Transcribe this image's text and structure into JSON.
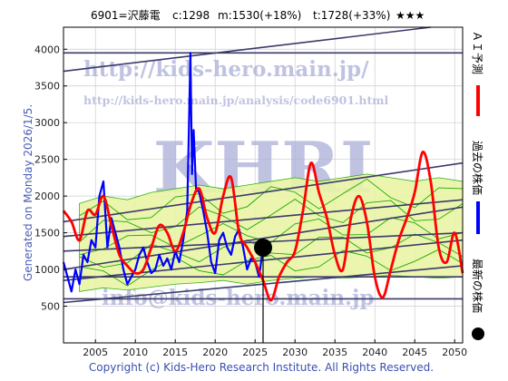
{
  "header": {
    "code_name": "6901=沢藤電",
    "current": "c:1298",
    "mid": "m:1530(+18%)",
    "target": "t:1728(+33%)",
    "stars": "★★★"
  },
  "side_text": "Generated on Monday 2026/1/5.",
  "copyright": "Copyright (c) Kids-Hero Research Institute. All Rights Reserved.",
  "watermarks": {
    "url_main": "http://kids-hero.main.jp/",
    "url_analysis": "http://kids-hero.main.jp/analysis/code6901.html",
    "logo": "KHRI",
    "email": "info@kids-hero.main.jp"
  },
  "legend": {
    "forecast": "ＡＩ予測",
    "past": "過去の株価",
    "latest": "最新の株価"
  },
  "colors": {
    "past": "#0000ff",
    "forecast": "#ff0000",
    "band_fill": "#e9f5a6",
    "band_line": "#22aa00",
    "trend": "#3a3a6a",
    "grid": "#cccccc",
    "marker": "#000000"
  },
  "chart_data": {
    "type": "line",
    "xlim": [
      2001,
      2051
    ],
    "ylim": [
      0,
      4300
    ],
    "x_ticks": [
      2005,
      2010,
      2015,
      2020,
      2025,
      2030,
      2035,
      2040,
      2045,
      2050
    ],
    "y_ticks": [
      500,
      1000,
      1500,
      2000,
      2500,
      3000,
      3500,
      4000
    ],
    "grid": true,
    "series": [
      {
        "role": "past",
        "x": [
          2001.0,
          2001.5,
          2002.0,
          2002.5,
          2003.0,
          2003.5,
          2004.0,
          2004.5,
          2005.0,
          2005.5,
          2006.0,
          2006.5,
          2007.0,
          2007.5,
          2008.0,
          2008.5,
          2009.0,
          2009.5,
          2010.0,
          2010.5,
          2011.0,
          2011.5,
          2012.0,
          2012.5,
          2013.0,
          2013.5,
          2014.0,
          2014.5,
          2015.0,
          2015.5,
          2016.0,
          2016.5,
          2016.9,
          2017.1,
          2017.3,
          2017.6,
          2018.0,
          2018.5,
          2019.0,
          2019.5,
          2020.0,
          2020.5,
          2021.0,
          2021.5,
          2022.0,
          2022.5,
          2023.0,
          2023.5,
          2024.0,
          2024.5,
          2025.0,
          2025.5,
          2026.0
        ],
        "values": [
          1100,
          900,
          700,
          1000,
          800,
          1200,
          1100,
          1400,
          1300,
          2000,
          2200,
          1300,
          1700,
          1500,
          1300,
          1000,
          800,
          900,
          1000,
          1200,
          1300,
          1100,
          950,
          1000,
          1200,
          1050,
          1150,
          1000,
          1250,
          1100,
          1400,
          1800,
          3950,
          2300,
          2900,
          2100,
          2050,
          1800,
          1500,
          1100,
          950,
          1400,
          1500,
          1300,
          1200,
          1450,
          1550,
          1300,
          1000,
          1150,
          1100,
          900,
          1298
        ]
      },
      {
        "role": "forecast",
        "x": [
          2001.0,
          2002.0,
          2003.0,
          2004.0,
          2005.0,
          2006.0,
          2007.0,
          2008.0,
          2009.0,
          2010.0,
          2011.0,
          2012.0,
          2013.0,
          2014.0,
          2015.0,
          2016.0,
          2017.0,
          2018.0,
          2019.0,
          2020.0,
          2021.0,
          2022.0,
          2023.0,
          2024.0,
          2025.0,
          2026.0,
          2027.0,
          2028.0,
          2029.0,
          2030.0,
          2031.0,
          2032.0,
          2033.0,
          2034.0,
          2035.0,
          2036.0,
          2037.0,
          2038.0,
          2039.0,
          2040.0,
          2041.0,
          2042.0,
          2043.0,
          2044.0,
          2045.0,
          2046.0,
          2047.0,
          2048.0,
          2049.0,
          2050.0,
          2051.0
        ],
        "values": [
          1800,
          1650,
          1400,
          1800,
          1750,
          2000,
          1600,
          1200,
          1050,
          950,
          1000,
          1300,
          1600,
          1500,
          1250,
          1500,
          1900,
          2100,
          1700,
          1500,
          2000,
          2250,
          1500,
          1300,
          1100,
          850,
          580,
          900,
          1100,
          1250,
          1800,
          2450,
          2050,
          1700,
          1200,
          1000,
          1700,
          2000,
          1650,
          900,
          620,
          1000,
          1400,
          1700,
          2050,
          2600,
          2200,
          1300,
          1100,
          1500,
          950
        ]
      }
    ],
    "latest": {
      "x": 2026.0,
      "value": 1298
    },
    "band": {
      "x": [
        2003,
        2006,
        2009,
        2012,
        2015,
        2018,
        2021,
        2024,
        2027,
        2030,
        2033,
        2036,
        2039,
        2042,
        2045,
        2048,
        2051
      ],
      "upper": [
        1900,
        2000,
        1950,
        2050,
        2100,
        2150,
        2100,
        2150,
        2200,
        2250,
        2200,
        2250,
        2300,
        2250,
        2200,
        2250,
        2200
      ],
      "lower": [
        700,
        750,
        720,
        760,
        800,
        820,
        850,
        800,
        850,
        880,
        900,
        880,
        900,
        920,
        900,
        880,
        900
      ]
    },
    "trend_lines": [
      {
        "x": [
          2001,
          2051
        ],
        "y": [
          3950,
          3950
        ]
      },
      {
        "x": [
          2001,
          2047
        ],
        "y": [
          3700,
          4300
        ]
      },
      {
        "x": [
          2001,
          2051
        ],
        "y": [
          1650,
          2450
        ]
      },
      {
        "x": [
          2001,
          2051
        ],
        "y": [
          1450,
          1950
        ]
      },
      {
        "x": [
          2001,
          2051
        ],
        "y": [
          1250,
          1500
        ]
      },
      {
        "x": [
          2001,
          2051
        ],
        "y": [
          1000,
          1850
        ]
      },
      {
        "x": [
          2001,
          2051
        ],
        "y": [
          850,
          1400
        ]
      },
      {
        "x": [
          2001,
          2051
        ],
        "y": [
          900,
          900
        ]
      },
      {
        "x": [
          2001,
          2051
        ],
        "y": [
          550,
          1050
        ]
      },
      {
        "x": [
          2001,
          2051
        ],
        "y": [
          600,
          600
        ]
      }
    ]
  }
}
